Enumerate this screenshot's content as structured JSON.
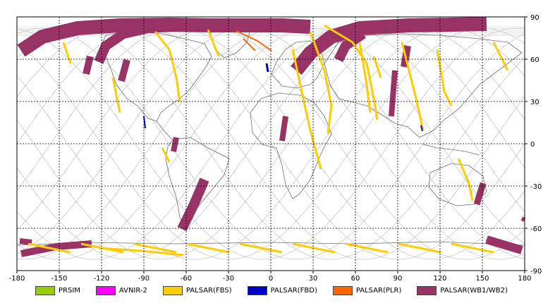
{
  "map": {
    "title": "",
    "projection": "equirectangular",
    "lon_range": [
      -180,
      180
    ],
    "lat_range": [
      -90,
      90
    ],
    "x_ticks": [
      "-180",
      "-150",
      "-120",
      "-90",
      "-60",
      "-30",
      "0",
      "30",
      "60",
      "90",
      "120",
      "150",
      "180"
    ],
    "y_ticks": [
      "90",
      "60",
      "30",
      "0",
      "-30",
      "-60",
      "-90"
    ],
    "grid": "dashed, 30 degree spacing",
    "coastline_color": "#707070",
    "orbit_track_color": "#c8c8c8"
  },
  "legend": [
    {
      "label": "PRSIM",
      "color": "#99cc00"
    },
    {
      "label": "AVNIR-2",
      "color": "#ff00ff"
    },
    {
      "label": "PALSAR(FBS)",
      "color": "#ffcc00"
    },
    {
      "label": "PALSAR(FBD)",
      "color": "#0000cc"
    },
    {
      "label": "PALSAR(PLR)",
      "color": "#ff6600"
    },
    {
      "label": "PALSAR(WB1/WB2)",
      "color": "#993366"
    }
  ]
}
